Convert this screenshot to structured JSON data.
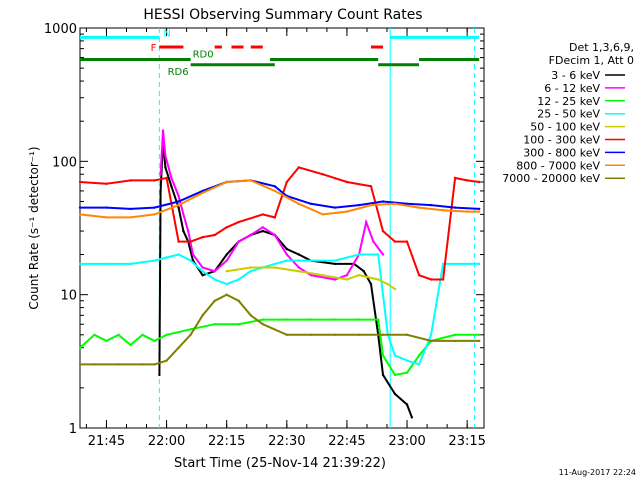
{
  "chart_data": {
    "type": "line",
    "title": "HESSI Observing Summary Count Rates",
    "xlabel": "Start Time (25-Nov-14 21:39:22)",
    "ylabel": "Count Rate (s⁻¹ detector⁻¹)",
    "yscale": "log",
    "ylim": [
      1,
      1000
    ],
    "xlim_minutes": [
      21.64,
      23.32
    ],
    "x_ticks": [
      {
        "h": 21.75,
        "label": "21:45"
      },
      {
        "h": 22.0,
        "label": "22:00"
      },
      {
        "h": 22.25,
        "label": "22:15"
      },
      {
        "h": 22.5,
        "label": "22:30"
      },
      {
        "h": 22.75,
        "label": "22:45"
      },
      {
        "h": 23.0,
        "label": "23:00"
      },
      {
        "h": 23.25,
        "label": "23:15"
      }
    ],
    "y_ticks": [
      {
        "v": 1,
        "label": "1"
      },
      {
        "v": 10,
        "label": "10"
      },
      {
        "v": 100,
        "label": "100"
      },
      {
        "v": 1000,
        "label": "1000"
      }
    ],
    "legend_header": [
      "Det 1,3,6,9,",
      "FDecim 1, Att 0"
    ],
    "legend_position": "right",
    "series": [
      {
        "name": "3 - 6 keV",
        "color": "#000000",
        "points": [
          [
            21.97,
            2.5
          ],
          [
            21.975,
            60
          ],
          [
            21.985,
            140
          ],
          [
            21.995,
            90
          ],
          [
            22.02,
            65
          ],
          [
            22.05,
            45
          ],
          [
            22.07,
            30
          ],
          [
            22.09,
            25
          ],
          [
            22.11,
            18
          ],
          [
            22.15,
            14
          ],
          [
            22.2,
            15
          ],
          [
            22.25,
            20
          ],
          [
            22.3,
            25
          ],
          [
            22.35,
            28
          ],
          [
            22.4,
            30
          ],
          [
            22.45,
            28
          ],
          [
            22.5,
            22
          ],
          [
            22.55,
            20
          ],
          [
            22.6,
            18
          ],
          [
            22.7,
            17
          ],
          [
            22.78,
            17
          ],
          [
            22.82,
            15
          ],
          [
            22.85,
            12
          ],
          [
            22.88,
            5
          ],
          [
            22.9,
            2.5
          ],
          [
            22.95,
            1.8
          ],
          [
            23.0,
            1.5
          ],
          [
            23.02,
            1.2
          ]
        ]
      },
      {
        "name": "6 - 12 keV",
        "color": "#ff00ff",
        "points": [
          [
            21.975,
            80
          ],
          [
            21.985,
            170
          ],
          [
            21.995,
            110
          ],
          [
            22.02,
            75
          ],
          [
            22.05,
            55
          ],
          [
            22.07,
            40
          ],
          [
            22.09,
            30
          ],
          [
            22.11,
            20
          ],
          [
            22.15,
            16
          ],
          [
            22.2,
            15
          ],
          [
            22.25,
            18
          ],
          [
            22.3,
            25
          ],
          [
            22.35,
            28
          ],
          [
            22.4,
            32
          ],
          [
            22.45,
            28
          ],
          [
            22.5,
            20
          ],
          [
            22.55,
            16
          ],
          [
            22.6,
            14
          ],
          [
            22.7,
            13
          ],
          [
            22.75,
            14
          ],
          [
            22.8,
            20
          ],
          [
            22.83,
            35
          ],
          [
            22.86,
            25
          ],
          [
            22.9,
            20
          ]
        ]
      },
      {
        "name": "12 - 25 keV",
        "color": "#00ff00",
        "points": [
          [
            21.64,
            4
          ],
          [
            21.7,
            5
          ],
          [
            21.75,
            4.5
          ],
          [
            21.8,
            5
          ],
          [
            21.85,
            4.2
          ],
          [
            21.9,
            5
          ],
          [
            21.95,
            4.5
          ],
          [
            22.0,
            5
          ],
          [
            22.1,
            5.5
          ],
          [
            22.2,
            6
          ],
          [
            22.3,
            6
          ],
          [
            22.4,
            6.5
          ],
          [
            22.5,
            6.5
          ],
          [
            22.6,
            6.5
          ],
          [
            22.7,
            6.5
          ],
          [
            22.8,
            6.5
          ],
          [
            22.88,
            6.5
          ],
          [
            22.9,
            3.5
          ],
          [
            22.95,
            2.5
          ],
          [
            23.0,
            2.6
          ],
          [
            23.05,
            3.5
          ],
          [
            23.1,
            4.5
          ],
          [
            23.2,
            5
          ],
          [
            23.3,
            5
          ]
        ]
      },
      {
        "name": "25 - 50 keV",
        "color": "#00ffff",
        "points": [
          [
            21.64,
            17
          ],
          [
            21.75,
            17
          ],
          [
            21.85,
            17
          ],
          [
            21.95,
            18
          ],
          [
            22.0,
            19
          ],
          [
            22.05,
            20
          ],
          [
            22.1,
            18
          ],
          [
            22.15,
            15
          ],
          [
            22.2,
            13
          ],
          [
            22.25,
            12
          ],
          [
            22.3,
            13
          ],
          [
            22.35,
            15
          ],
          [
            22.4,
            16
          ],
          [
            22.45,
            17
          ],
          [
            22.5,
            18
          ],
          [
            22.55,
            18
          ],
          [
            22.6,
            18
          ],
          [
            22.7,
            18
          ],
          [
            22.8,
            20
          ],
          [
            22.88,
            20
          ],
          [
            22.92,
            5
          ],
          [
            22.95,
            3.5
          ],
          [
            23.0,
            3.2
          ],
          [
            23.05,
            3
          ],
          [
            23.1,
            5
          ],
          [
            23.15,
            17
          ],
          [
            23.25,
            17
          ],
          [
            23.3,
            17
          ]
        ]
      },
      {
        "name": "50 - 100 keV",
        "color": "#cccc00",
        "points": [
          [
            22.25,
            15
          ],
          [
            22.35,
            16
          ],
          [
            22.45,
            16
          ],
          [
            22.55,
            15
          ],
          [
            22.65,
            14
          ],
          [
            22.75,
            13
          ],
          [
            22.8,
            14
          ],
          [
            22.88,
            13
          ],
          [
            22.92,
            12
          ],
          [
            22.95,
            11
          ]
        ]
      },
      {
        "name": "100 - 300 keV",
        "color": "#ff0000",
        "points": [
          [
            21.64,
            70
          ],
          [
            21.75,
            68
          ],
          [
            21.85,
            72
          ],
          [
            21.95,
            72
          ],
          [
            22.0,
            75
          ],
          [
            22.05,
            25
          ],
          [
            22.1,
            25
          ],
          [
            22.15,
            27
          ],
          [
            22.2,
            28
          ],
          [
            22.25,
            32
          ],
          [
            22.3,
            35
          ],
          [
            22.4,
            40
          ],
          [
            22.45,
            38
          ],
          [
            22.5,
            70
          ],
          [
            22.55,
            90
          ],
          [
            22.65,
            80
          ],
          [
            22.75,
            70
          ],
          [
            22.85,
            65
          ],
          [
            22.9,
            30
          ],
          [
            22.95,
            25
          ],
          [
            23.0,
            25
          ],
          [
            23.05,
            14
          ],
          [
            23.1,
            13
          ],
          [
            23.15,
            13
          ],
          [
            23.2,
            75
          ],
          [
            23.25,
            72
          ],
          [
            23.3,
            70
          ]
        ]
      },
      {
        "name": "300 - 800 keV",
        "color": "#0000ff",
        "points": [
          [
            21.64,
            45
          ],
          [
            21.75,
            45
          ],
          [
            21.85,
            44
          ],
          [
            21.95,
            45
          ],
          [
            22.05,
            50
          ],
          [
            22.15,
            60
          ],
          [
            22.25,
            70
          ],
          [
            22.35,
            72
          ],
          [
            22.45,
            65
          ],
          [
            22.5,
            55
          ],
          [
            22.6,
            48
          ],
          [
            22.7,
            45
          ],
          [
            22.8,
            47
          ],
          [
            22.9,
            50
          ],
          [
            23.0,
            48
          ],
          [
            23.1,
            47
          ],
          [
            23.2,
            45
          ],
          [
            23.3,
            44
          ]
        ]
      },
      {
        "name": "800 - 7000 keV",
        "color": "#ff8800",
        "points": [
          [
            21.64,
            40
          ],
          [
            21.75,
            38
          ],
          [
            21.85,
            38
          ],
          [
            21.95,
            40
          ],
          [
            22.05,
            47
          ],
          [
            22.15,
            58
          ],
          [
            22.25,
            70
          ],
          [
            22.35,
            72
          ],
          [
            22.45,
            60
          ],
          [
            22.55,
            48
          ],
          [
            22.65,
            40
          ],
          [
            22.75,
            42
          ],
          [
            22.85,
            47
          ],
          [
            22.95,
            48
          ],
          [
            23.05,
            45
          ],
          [
            23.15,
            43
          ],
          [
            23.25,
            42
          ],
          [
            23.3,
            42
          ]
        ]
      },
      {
        "name": "7000 - 20000 keV",
        "color": "#808000",
        "points": [
          [
            21.64,
            3
          ],
          [
            21.7,
            3
          ],
          [
            21.8,
            3
          ],
          [
            21.9,
            3
          ],
          [
            21.95,
            3
          ],
          [
            22.0,
            3.2
          ],
          [
            22.05,
            4
          ],
          [
            22.1,
            5
          ],
          [
            22.15,
            7
          ],
          [
            22.2,
            9
          ],
          [
            22.25,
            10
          ],
          [
            22.3,
            9
          ],
          [
            22.35,
            7
          ],
          [
            22.4,
            6
          ],
          [
            22.5,
            5
          ],
          [
            22.6,
            5
          ],
          [
            22.7,
            5
          ],
          [
            22.8,
            5
          ],
          [
            22.9,
            5
          ],
          [
            23.0,
            5
          ],
          [
            23.1,
            4.5
          ],
          [
            23.2,
            4.5
          ],
          [
            23.3,
            4.5
          ]
        ]
      }
    ],
    "state_bars": [
      {
        "label": "N",
        "color": "#00ffff",
        "y": 850,
        "segments": [
          [
            21.64,
            21.97
          ],
          [
            22.93,
            23.3
          ]
        ]
      },
      {
        "label": "F",
        "color": "#ff0000",
        "y": 720,
        "segments": [
          [
            21.97,
            22.07
          ],
          [
            22.2,
            22.23
          ],
          [
            22.27,
            22.32
          ],
          [
            22.35,
            22.4
          ],
          [
            22.85,
            22.9
          ]
        ]
      },
      {
        "label": "RD0",
        "color": "#008000",
        "y": 580,
        "segments": [
          [
            21.64,
            22.1
          ],
          [
            22.43,
            22.88
          ],
          [
            23.05,
            23.3
          ]
        ]
      },
      {
        "label": "RD6",
        "color": "#008000",
        "y": 530,
        "segments": [
          [
            22.1,
            22.45
          ],
          [
            22.88,
            23.05
          ]
        ]
      }
    ],
    "vertical_markers": [
      {
        "h": 21.97,
        "color": "#00ffff",
        "style": "dashed"
      },
      {
        "h": 22.93,
        "color": "#00ffff",
        "style": "solid"
      },
      {
        "h": 23.28,
        "color": "#00ffff",
        "style": "dashed"
      }
    ],
    "footer_date": "11-Aug-2017 22:24"
  }
}
